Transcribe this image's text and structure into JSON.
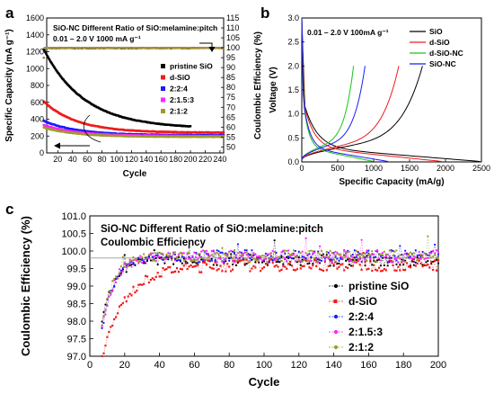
{
  "chart_data": [
    {
      "panel": "a",
      "type": "scatter",
      "title": "SiO-NC Different Ratio of SiO:melamine:pitch",
      "subtitle": "0.01 – 2.0 V 1000 mA g⁻¹",
      "xlabel": "Cycle",
      "ylabel": "Specific Capacity (mA g⁻¹)",
      "y2label": "Coulombic Efficiency (%)",
      "xlim": [
        5,
        245
      ],
      "ylim": [
        0,
        1600
      ],
      "y2lim": [
        47,
        115
      ],
      "xticks": [
        "20",
        "40",
        "60",
        "80",
        "100",
        "120",
        "140",
        "160",
        "180",
        "200",
        "220",
        "240"
      ],
      "yticks": [
        "0",
        "200",
        "400",
        "600",
        "800",
        "1000",
        "1200",
        "1400",
        "1600"
      ],
      "y2ticks": [
        "50",
        "55",
        "60",
        "65",
        "70",
        "75",
        "80",
        "85",
        "90",
        "95",
        "100",
        "105",
        "110",
        "115"
      ],
      "legend_position": "right",
      "series": [
        {
          "name": "pristine SiO",
          "color": "#000000",
          "last_cycle": 200,
          "start": 1230,
          "end": 290,
          "ce_end": 99.8
        },
        {
          "name": "d-SiO",
          "color": "#ee1c1c",
          "last_cycle": 245,
          "start": 610,
          "end": 240,
          "ce_end": 99.9
        },
        {
          "name": "2:2:4",
          "color": "#1a1aff",
          "last_cycle": 245,
          "start": 380,
          "end": 210,
          "ce_end": 99.9
        },
        {
          "name": "2:1.5:3",
          "color": "#ff22ff",
          "last_cycle": 245,
          "start": 330,
          "end": 200,
          "ce_end": 99.9
        },
        {
          "name": "2:1:2",
          "color": "#a09a2a",
          "last_cycle": 245,
          "start": 300,
          "end": 190,
          "ce_end": 99.9
        }
      ]
    },
    {
      "panel": "b",
      "type": "line",
      "title": "0.01 – 2.0 V 100mA g⁻¹",
      "xlabel": "Specific Capacity (mA/g)",
      "ylabel": "Voltage (V)",
      "xlim": [
        0,
        2500
      ],
      "ylim": [
        0,
        3
      ],
      "xticks": [
        "0",
        "500",
        "1000",
        "1500",
        "2000",
        "2500"
      ],
      "yticks": [
        "0.0",
        "0.5",
        "1.0",
        "1.5",
        "2.0",
        "2.5",
        "3.0"
      ],
      "legend_position": "top-right",
      "series": [
        {
          "name": "SiO",
          "color": "#000000",
          "charge_cap": 1680,
          "discharge_cap": 2480
        },
        {
          "name": "d-SiO",
          "color": "#ee1c1c",
          "charge_cap": 1350,
          "discharge_cap": 1950
        },
        {
          "name": "d-SiO-NC",
          "color": "#18c418",
          "charge_cap": 720,
          "discharge_cap": 1000
        },
        {
          "name": "SiO-NC",
          "color": "#1a1aff",
          "charge_cap": 880,
          "discharge_cap": 1200
        }
      ]
    },
    {
      "panel": "c",
      "type": "scatter",
      "title": "SiO-NC Different Ratio of SiO:melamine:pitch",
      "subtitle": "Coulombic Efficiency",
      "xlabel": "Cycle",
      "ylabel": "Coulombic Efficiency (%)",
      "xlim": [
        0,
        200
      ],
      "ylim": [
        97.0,
        101.0
      ],
      "xticks": [
        "0",
        "20",
        "40",
        "60",
        "80",
        "100",
        "120",
        "140",
        "160",
        "180",
        "200"
      ],
      "yticks": [
        "97.0",
        "97.5",
        "98.0",
        "98.5",
        "99.0",
        "99.5",
        "100.0",
        "100.5",
        "101.0"
      ],
      "reference_line": 99.8,
      "legend_position": "bottom-right",
      "series": [
        {
          "name": "pristine SiO",
          "color": "#000000",
          "first_ce": 97.9,
          "plateau": 99.75
        },
        {
          "name": "d-SiO",
          "color": "#ee1c1c",
          "first_ce": 97.0,
          "plateau": 99.6
        },
        {
          "name": "2:2:4",
          "color": "#1a1aff",
          "first_ce": 97.8,
          "plateau": 99.85
        },
        {
          "name": "2:1.5:3",
          "color": "#ff22ff",
          "first_ce": 97.8,
          "plateau": 99.85
        },
        {
          "name": "2:1:2",
          "color": "#a09a2a",
          "first_ce": 97.9,
          "plateau": 99.85
        }
      ]
    }
  ]
}
